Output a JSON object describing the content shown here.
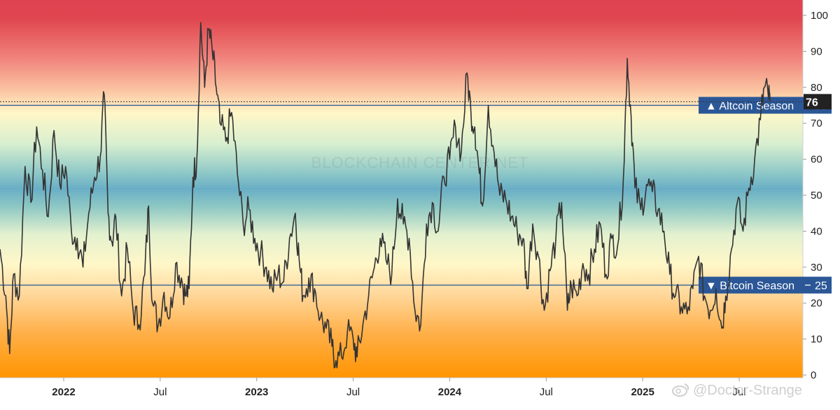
{
  "chart_data": {
    "type": "line",
    "title": "",
    "xlabel": "",
    "ylabel": "",
    "ylim": [
      0,
      100
    ],
    "y_ticks": [
      0,
      10,
      20,
      30,
      40,
      50,
      60,
      70,
      80,
      90,
      100
    ],
    "x_tick_labels": [
      "2022",
      "Jul",
      "2023",
      "Jul",
      "2024",
      "Jul",
      "2025",
      "Jul"
    ],
    "current_value": 76,
    "thresholds": [
      {
        "label": "▲ Altcoin Season",
        "value": 75,
        "value_label": "75",
        "color": "#2b5797"
      },
      {
        "label": "▼ Bitcoin Season",
        "value": 25,
        "value_label": "25",
        "color": "#2b5797"
      }
    ],
    "background_gradient": [
      "#e04850",
      "#f6a58a",
      "#fffccc",
      "#6baec6",
      "#fffccc",
      "#ff9e20"
    ],
    "series": [
      {
        "color": "#333333",
        "points": [
          [
            2021.67,
            35
          ],
          [
            2021.7,
            22
          ],
          [
            2021.72,
            6
          ],
          [
            2021.74,
            28
          ],
          [
            2021.77,
            22
          ],
          [
            2021.8,
            58
          ],
          [
            2021.83,
            48
          ],
          [
            2021.86,
            69
          ],
          [
            2021.89,
            57
          ],
          [
            2021.92,
            44
          ],
          [
            2021.95,
            68
          ],
          [
            2021.98,
            53
          ],
          [
            2022.01,
            58
          ],
          [
            2022.04,
            40
          ],
          [
            2022.07,
            38
          ],
          [
            2022.1,
            30
          ],
          [
            2022.13,
            45
          ],
          [
            2022.16,
            55
          ],
          [
            2022.19,
            61
          ],
          [
            2022.21,
            78
          ],
          [
            2022.23,
            45
          ],
          [
            2022.25,
            37
          ],
          [
            2022.27,
            44
          ],
          [
            2022.3,
            22
          ],
          [
            2022.33,
            35
          ],
          [
            2022.36,
            18
          ],
          [
            2022.39,
            14
          ],
          [
            2022.42,
            28
          ],
          [
            2022.44,
            47
          ],
          [
            2022.46,
            20
          ],
          [
            2022.49,
            14
          ],
          [
            2022.52,
            23
          ],
          [
            2022.55,
            16
          ],
          [
            2022.58,
            31
          ],
          [
            2022.61,
            27
          ],
          [
            2022.63,
            22
          ],
          [
            2022.65,
            24
          ],
          [
            2022.67,
            55
          ],
          [
            2022.69,
            60
          ],
          [
            2022.71,
            98
          ],
          [
            2022.73,
            80
          ],
          [
            2022.75,
            96
          ],
          [
            2022.77,
            90
          ],
          [
            2022.79,
            80
          ],
          [
            2022.81,
            70
          ],
          [
            2022.84,
            65
          ],
          [
            2022.87,
            73
          ],
          [
            2022.9,
            56
          ],
          [
            2022.93,
            42
          ],
          [
            2022.96,
            46
          ],
          [
            2022.99,
            38
          ],
          [
            2023.02,
            34
          ],
          [
            2023.05,
            30
          ],
          [
            2023.08,
            24
          ],
          [
            2023.11,
            28
          ],
          [
            2023.14,
            26
          ],
          [
            2023.17,
            38
          ],
          [
            2023.2,
            45
          ],
          [
            2023.22,
            32
          ],
          [
            2023.24,
            22
          ],
          [
            2023.27,
            27
          ],
          [
            2023.3,
            24
          ],
          [
            2023.33,
            16
          ],
          [
            2023.36,
            13
          ],
          [
            2023.39,
            8
          ],
          [
            2023.41,
            4
          ],
          [
            2023.44,
            5
          ],
          [
            2023.47,
            12
          ],
          [
            2023.5,
            10
          ],
          [
            2023.52,
            5
          ],
          [
            2023.55,
            14
          ],
          [
            2023.58,
            22
          ],
          [
            2023.61,
            30
          ],
          [
            2023.64,
            38
          ],
          [
            2023.67,
            32
          ],
          [
            2023.7,
            28
          ],
          [
            2023.73,
            49
          ],
          [
            2023.76,
            42
          ],
          [
            2023.79,
            38
          ],
          [
            2023.82,
            18
          ],
          [
            2023.85,
            14
          ],
          [
            2023.88,
            42
          ],
          [
            2023.91,
            48
          ],
          [
            2023.94,
            40
          ],
          [
            2023.97,
            55
          ],
          [
            2024.0,
            60
          ],
          [
            2024.03,
            69
          ],
          [
            2024.06,
            62
          ],
          [
            2024.09,
            84
          ],
          [
            2024.11,
            73
          ],
          [
            2024.13,
            69
          ],
          [
            2024.15,
            58
          ],
          [
            2024.17,
            47
          ],
          [
            2024.2,
            75
          ],
          [
            2024.23,
            62
          ],
          [
            2024.26,
            50
          ],
          [
            2024.29,
            49
          ],
          [
            2024.32,
            44
          ],
          [
            2024.35,
            40
          ],
          [
            2024.38,
            38
          ],
          [
            2024.4,
            24
          ],
          [
            2024.43,
            42
          ],
          [
            2024.46,
            33
          ],
          [
            2024.49,
            18
          ],
          [
            2024.52,
            29
          ],
          [
            2024.55,
            38
          ],
          [
            2024.58,
            48
          ],
          [
            2024.61,
            18
          ],
          [
            2024.63,
            25
          ],
          [
            2024.66,
            22
          ],
          [
            2024.69,
            31
          ],
          [
            2024.72,
            28
          ],
          [
            2024.75,
            35
          ],
          [
            2024.78,
            42
          ],
          [
            2024.81,
            28
          ],
          [
            2024.84,
            38
          ],
          [
            2024.87,
            36
          ],
          [
            2024.9,
            55
          ],
          [
            2024.92,
            88
          ],
          [
            2024.94,
            72
          ],
          [
            2024.96,
            52
          ],
          [
            2024.99,
            46
          ],
          [
            2025.02,
            53
          ],
          [
            2025.05,
            51
          ],
          [
            2025.08,
            46
          ],
          [
            2025.11,
            40
          ],
          [
            2025.14,
            28
          ],
          [
            2025.17,
            22
          ],
          [
            2025.2,
            19
          ],
          [
            2025.23,
            17
          ],
          [
            2025.26,
            24
          ],
          [
            2025.29,
            33
          ],
          [
            2025.32,
            22
          ],
          [
            2025.35,
            18
          ],
          [
            2025.38,
            24
          ],
          [
            2025.41,
            13
          ],
          [
            2025.43,
            22
          ],
          [
            2025.46,
            35
          ],
          [
            2025.49,
            48
          ],
          [
            2025.52,
            40
          ],
          [
            2025.55,
            52
          ],
          [
            2025.58,
            60
          ],
          [
            2025.61,
            71
          ],
          [
            2025.63,
            80
          ],
          [
            2025.65,
            78
          ],
          [
            2025.66,
            76
          ]
        ]
      }
    ],
    "watermark": "BLOCKCHAIN CENTER.NET"
  },
  "credit": {
    "icon": "weibo-icon",
    "text": "@Doctor-Strange"
  }
}
